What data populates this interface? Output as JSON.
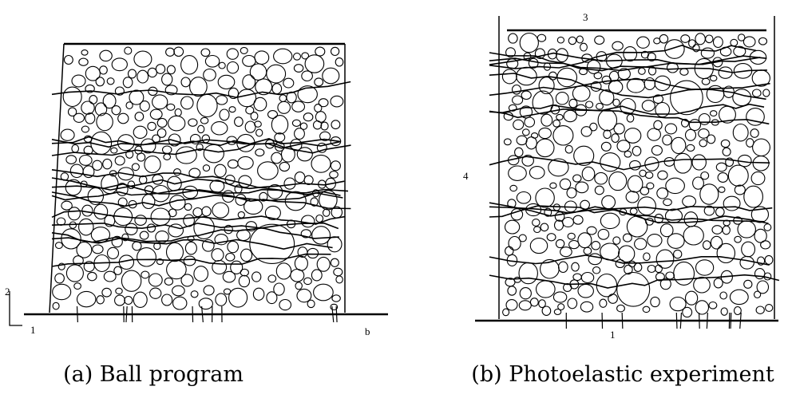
{
  "panels": [
    {
      "caption": "(a) Ball program",
      "marks": [
        "2",
        "1",
        "b"
      ]
    },
    {
      "caption": "(b) Photoelastic experiment",
      "marks": [
        "3",
        "4",
        "1"
      ]
    }
  ]
}
